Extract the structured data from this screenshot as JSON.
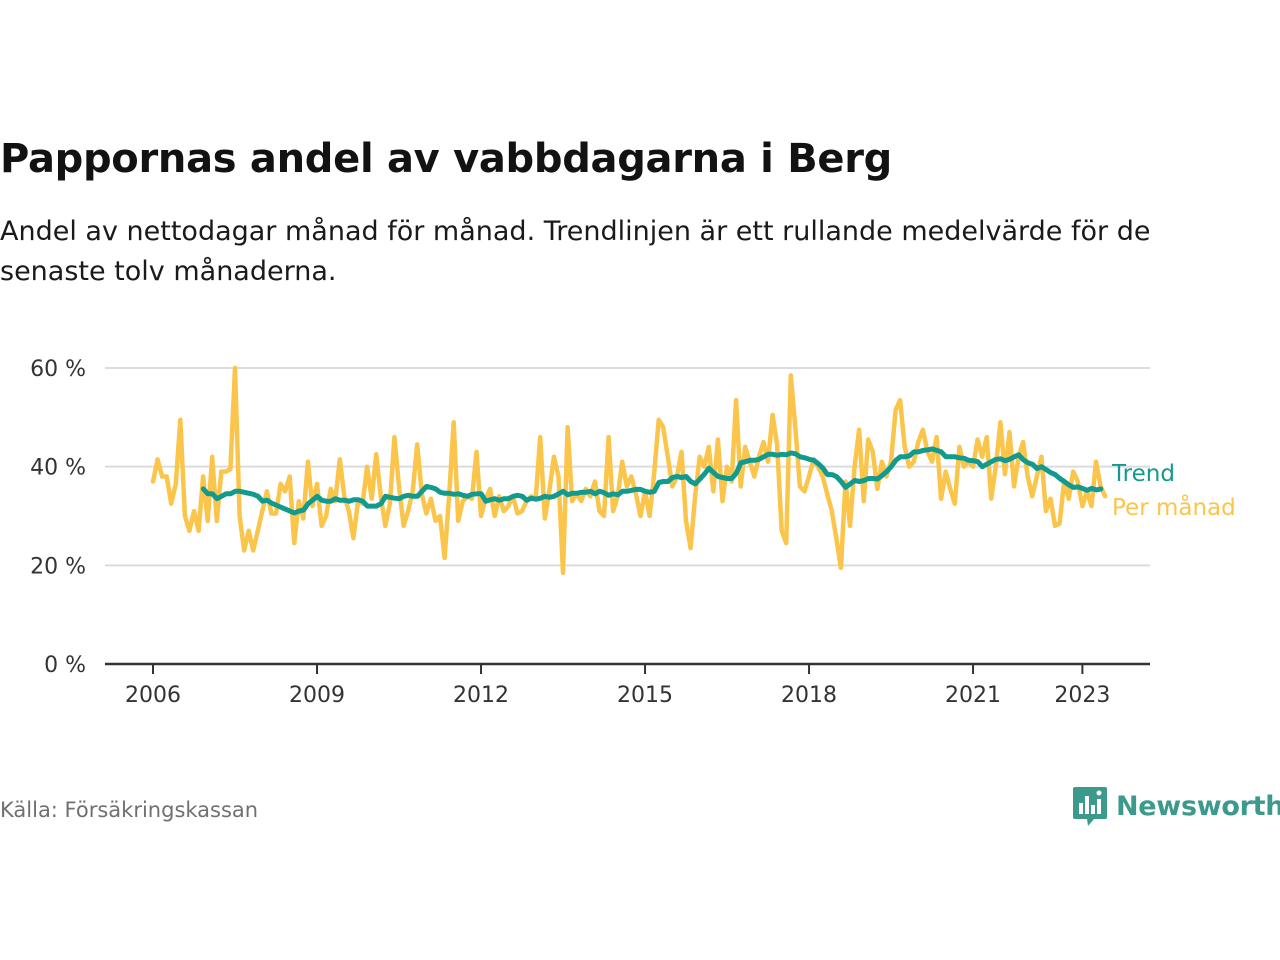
{
  "header": {
    "title": "Pappornas andel av vabbdagarna i Berg",
    "subtitle": "Andel av nettodagar månad för månad. Trendlinjen är ett rullande medelvärde för de senaste tolv månaderna."
  },
  "footer": {
    "source": "Källa: Försäkringskassan",
    "brand": "Newsworthy"
  },
  "colors": {
    "monthly": "#fbc54b",
    "trend": "#129a8e",
    "grid": "#dcdcdc",
    "axis": "#333333",
    "brand": "#3b9a8c"
  },
  "chart_data": {
    "type": "line",
    "title": "Pappornas andel av vabbdagarna i Berg",
    "xlabel": "",
    "ylabel": "",
    "x_range": [
      2006.0,
      2023.33
    ],
    "ylim": [
      0,
      60
    ],
    "y_ticks": [
      0,
      20,
      40,
      60
    ],
    "y_tick_labels": [
      "0 %",
      "20 %",
      "40 %",
      "60 %"
    ],
    "x_ticks": [
      2006,
      2009,
      2012,
      2015,
      2018,
      2021,
      2023
    ],
    "x_tick_labels": [
      "2006",
      "2009",
      "2012",
      "2015",
      "2018",
      "2021",
      "2023"
    ],
    "grid": true,
    "legend": [
      {
        "series": "Trend",
        "label": "Trend"
      },
      {
        "series": "Per månad",
        "label": "Per månad"
      }
    ],
    "series": [
      {
        "name": "Per månad",
        "start": 2006.0,
        "step": 0.08333,
        "values": [
          37,
          41.5,
          38,
          38,
          32.5,
          36.5,
          49.5,
          30,
          27,
          31,
          27,
          38,
          29,
          42,
          29,
          39,
          39,
          39.5,
          60,
          30,
          23,
          27,
          23,
          27,
          31,
          35,
          30.5,
          30.5,
          36.5,
          35,
          38,
          24.5,
          33,
          29.5,
          41,
          32,
          36.5,
          28,
          30,
          35.5,
          33,
          41.5,
          34,
          31,
          25.5,
          33,
          32.5,
          40,
          33.5,
          42.5,
          34,
          28,
          32.5,
          46,
          36,
          28,
          31,
          35,
          44.5,
          34.5,
          30.5,
          33.5,
          29,
          30,
          21.5,
          34,
          49,
          29,
          33,
          34,
          33.5,
          43,
          30,
          33.5,
          35.5,
          30,
          34,
          31,
          32,
          34,
          30.5,
          31,
          33,
          34,
          33.5,
          46,
          29.5,
          35,
          42,
          38,
          18.5,
          48,
          33,
          34.5,
          33,
          35.5,
          34,
          37,
          31,
          30,
          46,
          31,
          34,
          41,
          36,
          38,
          34.5,
          30,
          35,
          30,
          38.5,
          49.5,
          48,
          42,
          36,
          38,
          43,
          29,
          23.5,
          34,
          42,
          40,
          44,
          35,
          45.5,
          33,
          40,
          37,
          53.5,
          36,
          44,
          41,
          38,
          42,
          45,
          41,
          50.5,
          44.5,
          27,
          24.5,
          58.5,
          48,
          36,
          35,
          38,
          41.5,
          40,
          38,
          34.5,
          31,
          25.5,
          19.5,
          37,
          28,
          40,
          47.5,
          33,
          45.5,
          43,
          35.5,
          41,
          38,
          41,
          51.5,
          53.5,
          44,
          40,
          41,
          45,
          47.5,
          43,
          41,
          46,
          33.5,
          39,
          35.5,
          32.5,
          44,
          40,
          41,
          40,
          45.5,
          42,
          46,
          33.5,
          40,
          49,
          38.5,
          47,
          36,
          42,
          45,
          38,
          34,
          38,
          42,
          31,
          33.5,
          28,
          28.5,
          37,
          33.5,
          39,
          37,
          32,
          35,
          32,
          41,
          36,
          34
        ]
      },
      {
        "name": "Trend",
        "start": 2006.92,
        "step": 0.08333,
        "values": [
          35.5,
          34.5,
          34.5,
          33.5,
          34,
          34.5,
          34.5,
          35,
          35,
          34.8,
          34.6,
          34.4,
          34,
          33,
          33.2,
          32.6,
          32.2,
          31.8,
          31.4,
          31,
          30.6,
          31,
          31.2,
          32.5,
          33.2,
          34,
          33.2,
          33,
          33,
          33.5,
          33.2,
          33.2,
          33,
          33.3,
          33.3,
          33,
          32,
          32,
          32,
          32.5,
          34,
          33.8,
          33.6,
          33.5,
          34,
          34.2,
          34,
          34,
          35,
          36,
          35.8,
          35.5,
          34.8,
          34.6,
          34.6,
          34.4,
          34.5,
          34.2,
          34,
          34.4,
          34.5,
          34.5,
          33,
          33.3,
          33.5,
          33.2,
          33.5,
          33.5,
          34,
          34.2,
          34,
          33.2,
          33.6,
          33.4,
          33.6,
          34,
          33.8,
          34,
          34.5,
          35,
          34.3,
          34.6,
          34.6,
          34.8,
          34.8,
          35,
          34.5,
          35,
          34.7,
          34.2,
          34.5,
          34.3,
          35,
          35,
          35.2,
          35.4,
          35.4,
          35,
          34.8,
          35,
          36.8,
          37,
          37,
          37.8,
          38,
          37.8,
          38,
          37,
          36.5,
          37.5,
          38.5,
          39.7,
          38.8,
          38,
          37.8,
          37.6,
          37.6,
          38.7,
          40.8,
          41,
          41.3,
          41.3,
          41.5,
          42,
          42.5,
          42.5,
          42.3,
          42.5,
          42.4,
          42.8,
          42.6,
          42,
          41.8,
          41.5,
          41.3,
          40.6,
          39.7,
          38.4,
          38.4,
          38,
          37,
          35.8,
          36.5,
          37.2,
          37,
          37.2,
          37.6,
          37.6,
          37.5,
          38.2,
          39,
          40,
          41.3,
          42,
          42,
          42.2,
          43,
          43,
          43.3,
          43.4,
          43.6,
          43.3,
          43,
          42,
          42,
          42,
          41.8,
          41.7,
          41.3,
          41.2,
          41,
          40,
          40.5,
          41,
          41.5,
          41.6,
          41.2,
          41.5,
          42,
          42.4,
          41.4,
          40.8,
          40.5,
          39.6,
          40,
          39.4,
          38.8,
          38.4,
          37.6,
          37,
          36.3,
          35.8,
          35.9,
          35.6,
          35.2,
          35.6,
          35.3,
          35.5
        ]
      }
    ]
  }
}
